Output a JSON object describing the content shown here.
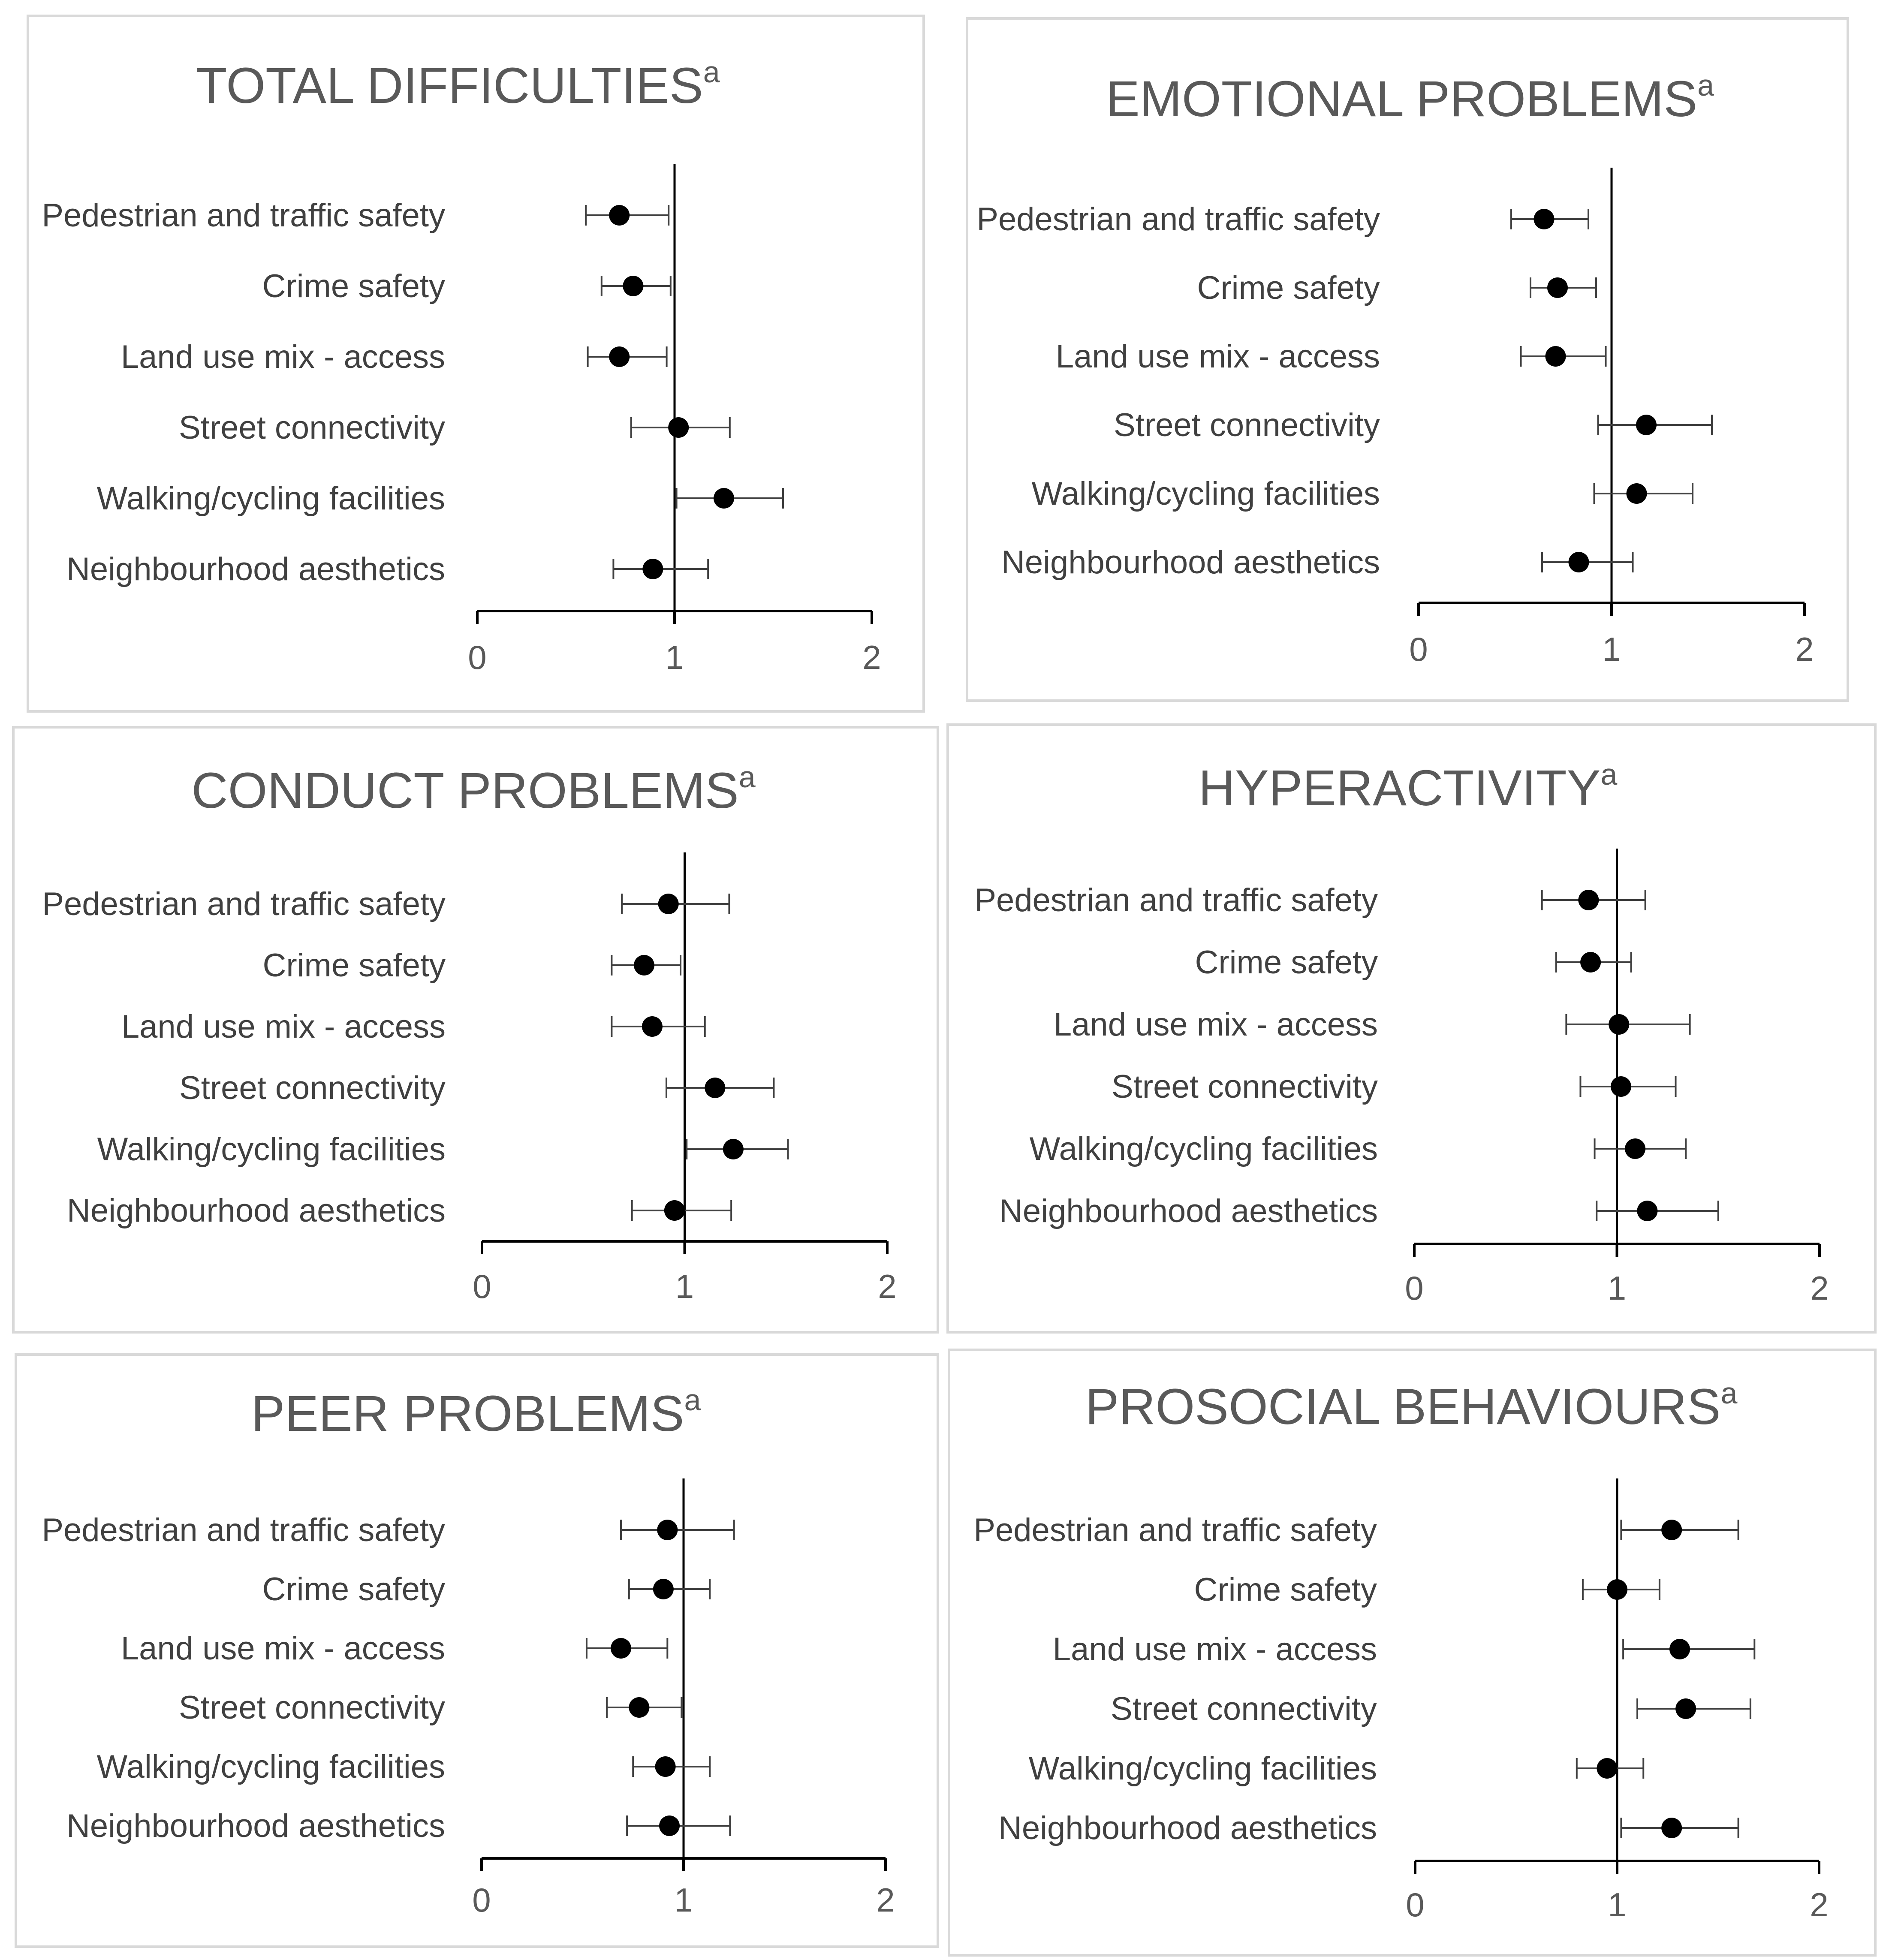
{
  "chart_data": [
    {
      "type": "forest",
      "title": "TOTAL DIFFICULTIES",
      "title_sup": "a",
      "categories": [
        "Pedestrian and traffic safety",
        "Crime safety",
        "Land use mix - access",
        "Street connectivity",
        "Walking/cycling facilities",
        "Neighbourhood aesthetics"
      ],
      "estimates": [
        0.72,
        0.79,
        0.72,
        1.02,
        1.25,
        0.89
      ],
      "lower": [
        0.55,
        0.63,
        0.56,
        0.78,
        1.01,
        0.69
      ],
      "upper": [
        0.97,
        0.98,
        0.96,
        1.28,
        1.55,
        1.17
      ],
      "xlim": [
        0,
        2
      ],
      "xticks": [
        "0",
        "1",
        "2"
      ],
      "reference_line": 1
    },
    {
      "type": "forest",
      "title": "EMOTIONAL PROBLEMS",
      "title_sup": "a",
      "categories": [
        "Pedestrian and traffic safety",
        "Crime safety",
        "Land use mix - access",
        "Street connectivity",
        "Walking/cycling facilities",
        "Neighbourhood aesthetics"
      ],
      "estimates": [
        0.65,
        0.72,
        0.71,
        1.18,
        1.13,
        0.83
      ],
      "lower": [
        0.48,
        0.58,
        0.53,
        0.93,
        0.91,
        0.64
      ],
      "upper": [
        0.88,
        0.92,
        0.97,
        1.52,
        1.42,
        1.11
      ],
      "xlim": [
        0,
        2
      ],
      "xticks": [
        "0",
        "1",
        "2"
      ],
      "reference_line": 1
    },
    {
      "type": "forest",
      "title": "CONDUCT PROBLEMS",
      "title_sup": "a",
      "categories": [
        "Pedestrian and traffic safety",
        "Crime safety",
        "Land use mix - access",
        "Street connectivity",
        "Walking/cycling facilities",
        "Neighbourhood aesthetics"
      ],
      "estimates": [
        0.92,
        0.8,
        0.84,
        1.15,
        1.24,
        0.95
      ],
      "lower": [
        0.69,
        0.64,
        0.64,
        0.91,
        1.01,
        0.74
      ],
      "upper": [
        1.22,
        0.98,
        1.1,
        1.44,
        1.51,
        1.23
      ],
      "xlim": [
        0,
        2
      ],
      "xticks": [
        "0",
        "1",
        "2"
      ],
      "reference_line": 1
    },
    {
      "type": "forest",
      "title": "HYPERACTIVITY",
      "title_sup": "a",
      "categories": [
        "Pedestrian and traffic safety",
        "Crime safety",
        "Land use mix - access",
        "Street connectivity",
        "Walking/cycling facilities",
        "Neighbourhood aesthetics"
      ],
      "estimates": [
        0.86,
        0.87,
        1.01,
        1.02,
        1.09,
        1.15
      ],
      "lower": [
        0.63,
        0.7,
        0.75,
        0.82,
        0.89,
        0.9
      ],
      "upper": [
        1.14,
        1.07,
        1.36,
        1.29,
        1.34,
        1.5
      ],
      "xlim": [
        0,
        2
      ],
      "xticks": [
        "0",
        "1",
        "2"
      ],
      "reference_line": 1
    },
    {
      "type": "forest",
      "title": "PEER PROBLEMS",
      "title_sup": "a",
      "categories": [
        "Pedestrian and traffic safety",
        "Crime safety",
        "Land use mix - access",
        "Street connectivity",
        "Walking/cycling facilities",
        "Neighbourhood aesthetics"
      ],
      "estimates": [
        0.92,
        0.9,
        0.69,
        0.78,
        0.91,
        0.93
      ],
      "lower": [
        0.69,
        0.73,
        0.52,
        0.62,
        0.75,
        0.72
      ],
      "upper": [
        1.25,
        1.13,
        0.92,
        0.99,
        1.13,
        1.23
      ],
      "xlim": [
        0,
        2
      ],
      "xticks": [
        "0",
        "1",
        "2"
      ],
      "reference_line": 1
    },
    {
      "type": "forest",
      "title": "PROSOCIAL BEHAVIOURS",
      "title_sup": "a",
      "categories": [
        "Pedestrian and traffic safety",
        "Crime safety",
        "Land use mix - access",
        "Street connectivity",
        "Walking/cycling facilities",
        "Neighbourhood aesthetics"
      ],
      "estimates": [
        1.27,
        1.0,
        1.31,
        1.34,
        0.95,
        1.27
      ],
      "lower": [
        1.02,
        0.83,
        1.03,
        1.1,
        0.8,
        1.02
      ],
      "upper": [
        1.6,
        1.21,
        1.68,
        1.66,
        1.13,
        1.6
      ],
      "xlim": [
        0,
        2
      ],
      "xticks": [
        "0",
        "1",
        "2"
      ],
      "reference_line": 1
    }
  ]
}
